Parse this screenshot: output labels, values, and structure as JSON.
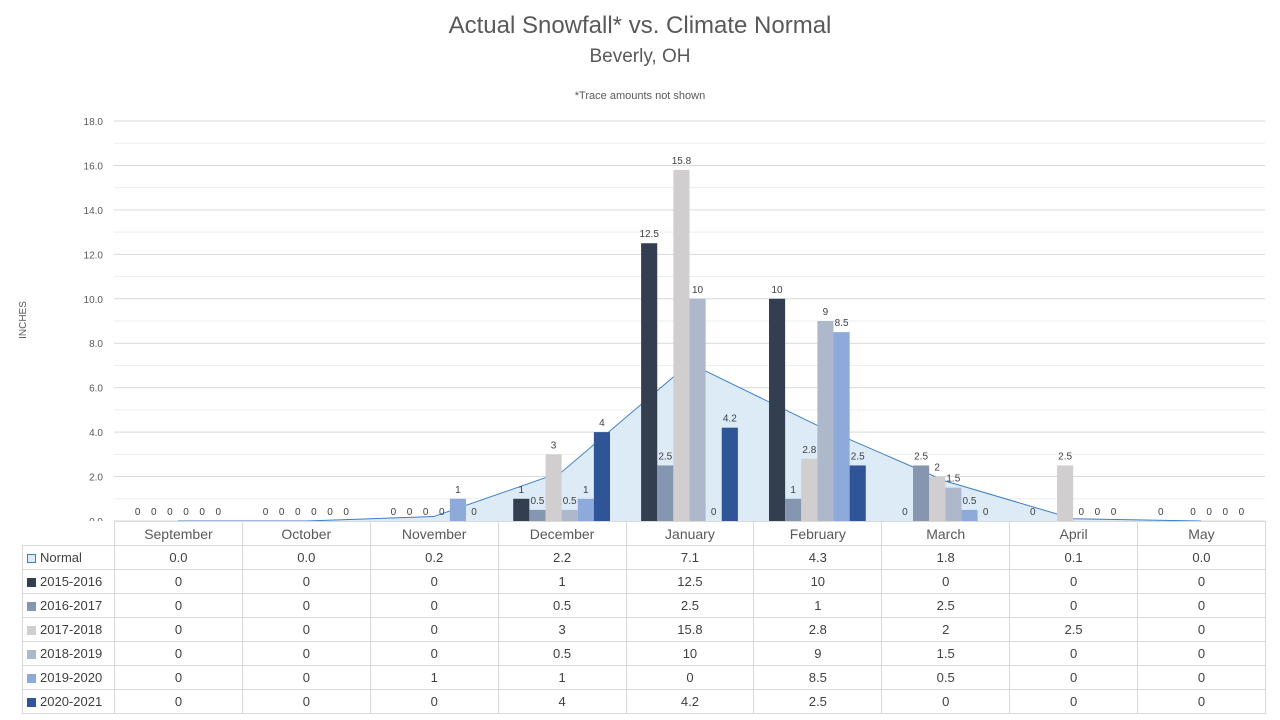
{
  "chart_data": {
    "type": "bar",
    "title": "Actual Snowfall* vs. Climate Normal",
    "subtitle": "Beverly, OH",
    "note": "*Trace amounts not shown",
    "ylabel": "INCHES",
    "ylim": [
      0,
      18
    ],
    "yticks": [
      "0.0",
      "2.0",
      "4.0",
      "6.0",
      "8.0",
      "10.0",
      "12.0",
      "14.0",
      "16.0",
      "18.0"
    ],
    "grid": true,
    "categories": [
      "September",
      "October",
      "November",
      "December",
      "January",
      "February",
      "March",
      "April",
      "May"
    ],
    "normal": {
      "name": "Normal",
      "type": "area",
      "values": [
        0.0,
        0.0,
        0.2,
        2.2,
        7.1,
        4.3,
        1.8,
        0.1,
        0.0
      ],
      "display": [
        "0.0",
        "0.0",
        "0.2",
        "2.2",
        "7.1",
        "4.3",
        "1.8",
        "0.1",
        "0.0"
      ],
      "fill": "#ddebf7",
      "stroke": "#3b7fc4"
    },
    "series": [
      {
        "name": "2015-2016",
        "color": "#333f50",
        "values": [
          0,
          0,
          0,
          1,
          12.5,
          10,
          0,
          0,
          0
        ]
      },
      {
        "name": "2016-2017",
        "color": "#8496b0",
        "values": [
          0,
          0,
          0,
          0.5,
          2.5,
          1,
          2.5,
          0,
          0
        ]
      },
      {
        "name": "2017-2018",
        "color": "#d0cece",
        "values": [
          0,
          0,
          0,
          3,
          15.8,
          2.8,
          2,
          2.5,
          0
        ]
      },
      {
        "name": "2018-2019",
        "color": "#adb9ca",
        "values": [
          0,
          0,
          0,
          0.5,
          10,
          9,
          1.5,
          0,
          0
        ]
      },
      {
        "name": "2019-2020",
        "color": "#8eaadb",
        "values": [
          0,
          0,
          1,
          1,
          0,
          8.5,
          0.5,
          0,
          0
        ]
      },
      {
        "name": "2020-2021",
        "color": "#2f5597",
        "values": [
          0,
          0,
          0,
          4,
          4.2,
          2.5,
          0,
          0,
          0
        ]
      }
    ],
    "data_labels": [
      [
        "0",
        "0",
        "0",
        "1",
        "12.5",
        "10",
        "0",
        "0",
        "0"
      ],
      [
        "0",
        "0",
        "0",
        "0.5",
        "2.5",
        "1",
        "2.5",
        "",
        ""
      ],
      [
        "0",
        "0",
        "0",
        "3",
        "15.8",
        "2.8",
        "2",
        "2.5",
        "0"
      ],
      [
        "0",
        "0",
        "0",
        "0.5",
        "10",
        "9",
        "1.5",
        "0",
        "0"
      ],
      [
        "0",
        "0",
        "1",
        "1",
        "0",
        "8.5",
        "0.5",
        "0",
        "0"
      ],
      [
        "0",
        "0",
        "0",
        "4",
        "4.2",
        "2.5",
        "0",
        "0",
        "0"
      ]
    ],
    "table_rows": [
      [
        "0",
        "0",
        "0",
        "1",
        "12.5",
        "10",
        "0",
        "0",
        "0"
      ],
      [
        "0",
        "0",
        "0",
        "0.5",
        "2.5",
        "1",
        "2.5",
        "0",
        "0"
      ],
      [
        "0",
        "0",
        "0",
        "3",
        "15.8",
        "2.8",
        "2",
        "2.5",
        "0"
      ],
      [
        "0",
        "0",
        "0",
        "0.5",
        "10",
        "9",
        "1.5",
        "0",
        "0"
      ],
      [
        "0",
        "0",
        "1",
        "1",
        "0",
        "8.5",
        "0.5",
        "0",
        "0"
      ],
      [
        "0",
        "0",
        "0",
        "4",
        "4.2",
        "2.5",
        "0",
        "0",
        "0"
      ]
    ]
  }
}
